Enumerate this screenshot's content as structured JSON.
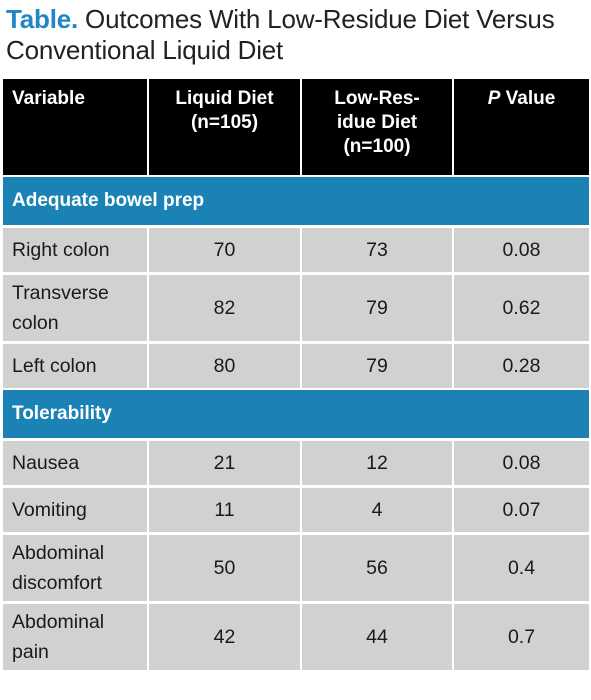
{
  "title": {
    "label": "Table.",
    "text": "Outcomes With Low-Residue Diet Versus Conventional Liquid Diet"
  },
  "header": {
    "variable": "Variable",
    "liquid_line1": "Liquid Diet",
    "liquid_line2": "(n=105)",
    "lowres_line1": "Low-Res-",
    "lowres_line2": "idue Diet",
    "lowres_line3": "(n=100)",
    "p_italic": "P",
    "p_rest": "Value"
  },
  "sections": [
    {
      "name": "Adequate bowel prep",
      "rows": [
        {
          "variable": "Right colon",
          "liquid": "70",
          "lowres": "73",
          "p": "0.08"
        },
        {
          "variable": "Transverse colon",
          "liquid": "82",
          "lowres": "79",
          "p": "0.62"
        },
        {
          "variable": "Left colon",
          "liquid": "80",
          "lowres": "79",
          "p": "0.28"
        }
      ]
    },
    {
      "name": "Tolerability",
      "rows": [
        {
          "variable": "Nausea",
          "liquid": "21",
          "lowres": "12",
          "p": "0.08"
        },
        {
          "variable": "Vomiting",
          "liquid": "11",
          "lowres": "4",
          "p": "0.07"
        },
        {
          "variable": "Abdominal discomfort",
          "liquid": "50",
          "lowres": "56",
          "p": "0.4"
        },
        {
          "variable": "Abdominal pain",
          "liquid": "42",
          "lowres": "44",
          "p": "0.7"
        }
      ]
    }
  ],
  "colors": {
    "title_label": "#1f87c3",
    "header_bg": "#000000",
    "section_bg": "#1b82b5",
    "row_bg": "#d1d1d2"
  }
}
